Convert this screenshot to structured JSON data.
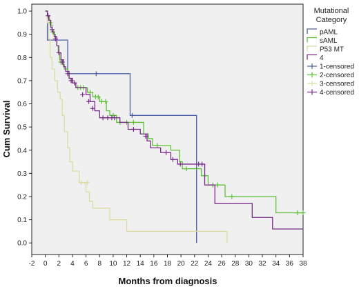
{
  "chart_data": {
    "type": "line",
    "subtype": "kaplan-meier",
    "xlabel": "Months from diagnosis",
    "ylabel": "Cum Survival",
    "xlim": [
      -2,
      38
    ],
    "ylim": [
      -0.05,
      1.03
    ],
    "xticks": [
      -2,
      0,
      2,
      4,
      6,
      8,
      10,
      12,
      14,
      16,
      18,
      20,
      22,
      24,
      26,
      28,
      30,
      32,
      34,
      36,
      38
    ],
    "yticks": [
      0.0,
      0.1,
      0.2,
      0.3,
      0.4,
      0.5,
      0.6,
      0.7,
      0.8,
      0.9,
      1.0
    ],
    "xtick_labels": [
      "-2",
      "0",
      "2",
      "4",
      "6",
      "8",
      "10",
      "12",
      "14",
      "16",
      "18",
      "20",
      "22",
      "24",
      "26",
      "28",
      "30",
      "32",
      "34",
      "36",
      "38"
    ],
    "ytick_labels": [
      "0.0",
      "0.1",
      "0.2",
      "0.3",
      "0.4",
      "0.5",
      "0.6",
      "0.7",
      "0.8",
      "0.9",
      "1.0"
    ],
    "legend": {
      "title": "Mutational Category",
      "title_lines": [
        "Mutational",
        "Category"
      ],
      "placement": "right",
      "entries": [
        {
          "label": "pAML",
          "color": "#4a5fa8",
          "kind": "line"
        },
        {
          "label": "sAML",
          "color": "#5fbf3a",
          "kind": "line"
        },
        {
          "label": "P53 MT",
          "color": "#dcdca0",
          "kind": "line"
        },
        {
          "label": "4",
          "color": "#7a2a8a",
          "kind": "line"
        },
        {
          "label": "1-censored",
          "color": "#4a5fa8",
          "kind": "censor"
        },
        {
          "label": "2-censored",
          "color": "#5fbf3a",
          "kind": "censor"
        },
        {
          "label": "3-censored",
          "color": "#dcdca0",
          "kind": "censor"
        },
        {
          "label": "4-censored",
          "color": "#7a2a8a",
          "kind": "censor"
        }
      ]
    },
    "series": [
      {
        "name": "pAML",
        "color": "#4a5fa8",
        "steps": [
          [
            0,
            1.0
          ],
          [
            0.3,
            0.875
          ],
          [
            3.3,
            0.875
          ],
          [
            3.3,
            0.73
          ],
          [
            12.5,
            0.73
          ],
          [
            12.5,
            0.55
          ],
          [
            22.3,
            0.55
          ],
          [
            22.3,
            0.0
          ]
        ],
        "censored": [
          [
            7.5,
            0.73
          ],
          [
            12.8,
            0.55
          ]
        ]
      },
      {
        "name": "sAML",
        "color": "#5fbf3a",
        "steps": [
          [
            0,
            1.0
          ],
          [
            0.3,
            0.98
          ],
          [
            0.6,
            0.96
          ],
          [
            0.8,
            0.94
          ],
          [
            1.0,
            0.92
          ],
          [
            1.2,
            0.9
          ],
          [
            1.5,
            0.88
          ],
          [
            1.7,
            0.85
          ],
          [
            1.9,
            0.82
          ],
          [
            2.1,
            0.79
          ],
          [
            2.5,
            0.77
          ],
          [
            2.8,
            0.75
          ],
          [
            3.3,
            0.73
          ],
          [
            3.5,
            0.71
          ],
          [
            4.0,
            0.69
          ],
          [
            4.5,
            0.67
          ],
          [
            6.2,
            0.65
          ],
          [
            7.0,
            0.63
          ],
          [
            8.0,
            0.61
          ],
          [
            9.0,
            0.57
          ],
          [
            9.5,
            0.55
          ],
          [
            10.5,
            0.52
          ],
          [
            14.5,
            0.47
          ],
          [
            15.2,
            0.45
          ],
          [
            15.8,
            0.42
          ],
          [
            18.5,
            0.4
          ],
          [
            19.8,
            0.35
          ],
          [
            20.2,
            0.32
          ],
          [
            23.0,
            0.29
          ],
          [
            24.0,
            0.25
          ],
          [
            26.5,
            0.2
          ],
          [
            34.0,
            0.13
          ],
          [
            38.0,
            0.13
          ]
        ],
        "censored": [
          [
            0.7,
            0.95
          ],
          [
            1.1,
            0.91
          ],
          [
            2.3,
            0.78
          ],
          [
            3.9,
            0.7
          ],
          [
            4.8,
            0.67
          ],
          [
            5.2,
            0.67
          ],
          [
            5.6,
            0.67
          ],
          [
            6.6,
            0.65
          ],
          [
            7.4,
            0.63
          ],
          [
            7.8,
            0.63
          ],
          [
            8.3,
            0.61
          ],
          [
            8.9,
            0.61
          ],
          [
            10.0,
            0.55
          ],
          [
            11.0,
            0.52
          ],
          [
            12.0,
            0.52
          ],
          [
            13.0,
            0.52
          ],
          [
            16.5,
            0.42
          ],
          [
            20.8,
            0.32
          ],
          [
            23.5,
            0.29
          ],
          [
            24.7,
            0.25
          ],
          [
            25.4,
            0.25
          ],
          [
            27.5,
            0.2
          ],
          [
            37.2,
            0.13
          ],
          [
            38.0,
            0.13
          ]
        ]
      },
      {
        "name": "P53 MT",
        "color": "#dcdca0",
        "steps": [
          [
            0,
            1.0
          ],
          [
            0.3,
            0.95
          ],
          [
            0.5,
            0.88
          ],
          [
            0.7,
            0.8
          ],
          [
            1.0,
            0.75
          ],
          [
            1.4,
            0.7
          ],
          [
            1.8,
            0.65
          ],
          [
            2.2,
            0.62
          ],
          [
            2.5,
            0.55
          ],
          [
            2.8,
            0.48
          ],
          [
            3.3,
            0.41
          ],
          [
            3.6,
            0.35
          ],
          [
            4.0,
            0.31
          ],
          [
            5.0,
            0.26
          ],
          [
            6.0,
            0.22
          ],
          [
            6.5,
            0.18
          ],
          [
            7.0,
            0.15
          ],
          [
            9.5,
            0.1
          ],
          [
            12.0,
            0.05
          ],
          [
            26.8,
            0.05
          ],
          [
            26.8,
            0.0
          ]
        ],
        "censored": [
          [
            5.3,
            0.26
          ],
          [
            6.2,
            0.26
          ]
        ]
      },
      {
        "name": "4",
        "color": "#7a2a8a",
        "steps": [
          [
            0,
            1.0
          ],
          [
            0.3,
            0.98
          ],
          [
            0.5,
            0.96
          ],
          [
            0.8,
            0.93
          ],
          [
            1.0,
            0.91
          ],
          [
            1.3,
            0.89
          ],
          [
            1.7,
            0.85
          ],
          [
            2.0,
            0.82
          ],
          [
            2.3,
            0.79
          ],
          [
            2.7,
            0.76
          ],
          [
            3.0,
            0.74
          ],
          [
            3.5,
            0.71
          ],
          [
            4.0,
            0.69
          ],
          [
            4.5,
            0.67
          ],
          [
            6.0,
            0.64
          ],
          [
            6.6,
            0.61
          ],
          [
            7.3,
            0.57
          ],
          [
            8.0,
            0.54
          ],
          [
            11.0,
            0.52
          ],
          [
            12.2,
            0.49
          ],
          [
            14.0,
            0.47
          ],
          [
            15.0,
            0.44
          ],
          [
            15.5,
            0.41
          ],
          [
            17.0,
            0.39
          ],
          [
            18.5,
            0.36
          ],
          [
            19.5,
            0.34
          ],
          [
            23.5,
            0.25
          ],
          [
            25.0,
            0.17
          ],
          [
            30.5,
            0.11
          ],
          [
            33.5,
            0.06
          ],
          [
            38.0,
            0.06
          ]
        ],
        "censored": [
          [
            0.4,
            0.98
          ],
          [
            1.0,
            0.92
          ],
          [
            1.5,
            0.88
          ],
          [
            2.0,
            0.82
          ],
          [
            2.5,
            0.78
          ],
          [
            3.3,
            0.73
          ],
          [
            3.8,
            0.7
          ],
          [
            4.3,
            0.69
          ],
          [
            5.5,
            0.64
          ],
          [
            6.4,
            0.61
          ],
          [
            7.0,
            0.58
          ],
          [
            8.5,
            0.54
          ],
          [
            9.2,
            0.54
          ],
          [
            9.8,
            0.54
          ],
          [
            10.2,
            0.54
          ],
          [
            13.0,
            0.49
          ],
          [
            14.8,
            0.46
          ],
          [
            17.8,
            0.39
          ],
          [
            18.8,
            0.36
          ],
          [
            19.9,
            0.34
          ],
          [
            22.6,
            0.34
          ],
          [
            23.1,
            0.34
          ]
        ]
      }
    ]
  }
}
